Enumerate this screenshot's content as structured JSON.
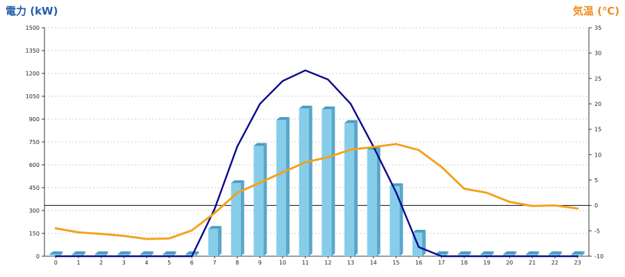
{
  "chart_data": {
    "type": "bar+line",
    "left_axis_title": "電力 (kW)",
    "right_axis_title": "気温 (℃)",
    "left_ylim": [
      0,
      1500
    ],
    "left_ticks": [
      "0",
      "150",
      "300",
      "450",
      "600",
      "750",
      "900",
      "1050",
      "1200",
      "1350",
      "1500"
    ],
    "right_ylim": [
      -10,
      35
    ],
    "right_ticks": [
      "-10",
      "-5",
      "0",
      "5",
      "10",
      "15",
      "20",
      "25",
      "30",
      "35"
    ],
    "categories": [
      "0",
      "1",
      "2",
      "3",
      "4",
      "5",
      "6",
      "7",
      "8",
      "9",
      "10",
      "11",
      "12",
      "13",
      "14",
      "15",
      "16",
      "17",
      "18",
      "19",
      "20",
      "21",
      "22",
      "23"
    ],
    "series": [
      {
        "kind": "bar",
        "axis": "left",
        "values": [
          0,
          0,
          0,
          0,
          0,
          0,
          0,
          180,
          480,
          725,
          895,
          970,
          965,
          875,
          700,
          460,
          155,
          0,
          0,
          0,
          0,
          0,
          0,
          0
        ]
      },
      {
        "kind": "line",
        "axis": "left",
        "values": [
          0,
          0,
          0,
          0,
          0,
          0,
          0,
          310,
          720,
          1000,
          1150,
          1220,
          1160,
          1000,
          720,
          420,
          60,
          0,
          0,
          0,
          0,
          0,
          0,
          0
        ]
      },
      {
        "kind": "line",
        "axis": "right",
        "values": [
          -4.5,
          -5.3,
          -5.6,
          -6.0,
          -6.6,
          -6.5,
          -4.9,
          -1.5,
          2.5,
          4.5,
          6.5,
          8.5,
          9.5,
          11.0,
          11.5,
          12.1,
          10.9,
          7.6,
          3.3,
          2.5,
          0.7,
          -0.1,
          0,
          -0.6
        ]
      }
    ],
    "colors": {
      "bar": "#86cdea",
      "bar_top": "#4a9cc0",
      "bar_side": "#5aa7cb",
      "power_line": "#0d0d8c",
      "temp_line": "#f2a21a",
      "left_title": "#1f5fa8",
      "right_title": "#f08c1e",
      "grid": "#bbbbbb",
      "zero_line": "#000000"
    },
    "grid": true
  }
}
